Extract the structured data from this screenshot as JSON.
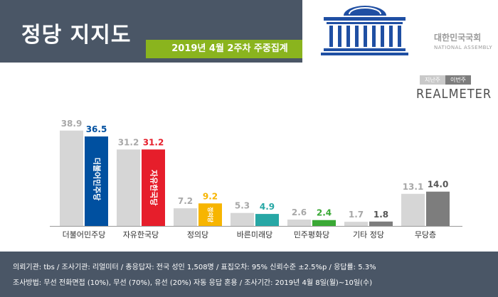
{
  "header": {
    "title": "정당 지지도",
    "subtitle": "2019년 4월 2주차 주중집계",
    "assembly_name": "대한민국국회",
    "assembly_sub": "NATIONAL ASSEMBLY"
  },
  "legend": {
    "prev_label": "지난주",
    "this_label": "이번주",
    "brand": "REALMETER"
  },
  "colors": {
    "header_bg": "#4a5666",
    "accent_green": "#8ab41e",
    "prev_bar": "#d6d6d6",
    "other_bar": "#7d7d7d"
  },
  "chart_data": {
    "type": "bar",
    "categories": [
      "더불어민주당",
      "자유한국당",
      "정의당",
      "바른미래당",
      "민주평화당",
      "기타 정당",
      "무당층"
    ],
    "series": [
      {
        "name": "지난주",
        "values": [
          38.9,
          31.2,
          7.2,
          5.3,
          2.6,
          1.7,
          13.1
        ]
      },
      {
        "name": "이번주",
        "values": [
          36.5,
          31.2,
          9.2,
          4.9,
          2.4,
          1.8,
          14.0
        ]
      }
    ],
    "value_labels": {
      "prev": [
        "38.9",
        "31.2",
        "7.2",
        "5.3",
        "2.6",
        "1.7",
        "13.1"
      ],
      "curr": [
        "36.5",
        "31.2",
        "9.2",
        "4.9",
        "2.4",
        "1.8",
        "14.0"
      ]
    },
    "curr_colors": [
      "#0050a0",
      "#e61e2b",
      "#f7b500",
      "#27a7a5",
      "#3aa935",
      "#7d7d7d",
      "#7d7d7d"
    ],
    "curr_label_colors": [
      "#0050a0",
      "#e61e2b",
      "#f7b500",
      "#27a7a5",
      "#3aa935",
      "#555555",
      "#555555"
    ],
    "bar_logos": [
      "더불어민주당",
      "자유한국당",
      "정의당",
      "",
      "",
      "",
      ""
    ],
    "ylim": [
      0,
      40
    ]
  },
  "footer": {
    "line1": "의뢰기관: tbs / 조사기관: 리얼미터 / 총응답자: 전국 성인 1,508명 / 표집오차: 95% 신뢰수준 ±2.5%p / 응답률: 5.3%",
    "line2": "조사방법: 무선 전화면접 (10%), 무선 (70%), 유선 (20%) 자동 응답 혼용 / 조사기간: 2019년 4월 8일(월)~10일(수)"
  }
}
